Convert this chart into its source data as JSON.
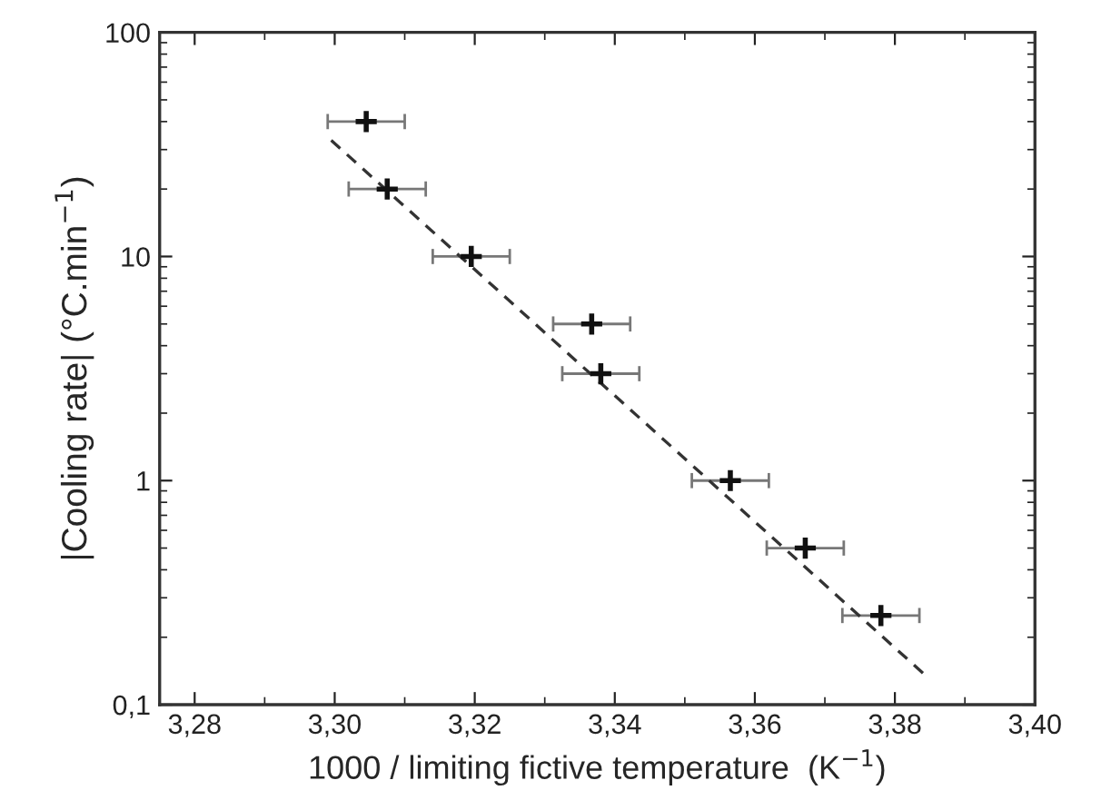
{
  "chart_data": {
    "type": "scatter",
    "xlabel": "1000 / limiting fictive temperature  (K$^{−1}$)",
    "ylabel": "|Cooling rate| (°C.min$^{−1}$)",
    "series": [
      {
        "color": "#111111",
        "marker": "cross",
        "x": [
          3.3045,
          3.3075,
          3.3195,
          3.3367,
          3.338,
          3.3565,
          3.3672,
          3.378
        ],
        "values": [
          40,
          20,
          10,
          5,
          3,
          1,
          0.5,
          0.25
        ],
        "xerrors": [
          0.0055,
          0.0055,
          0.0055,
          0.0055,
          0.0055,
          0.0055,
          0.0055,
          0.0055
        ]
      },
      {
        "type": "line",
        "color": "#333333",
        "line_style": "dashed",
        "marker": "none",
        "x": [
          3.2995,
          3.3845
        ],
        "values": [
          33,
          0.134
        ]
      }
    ],
    "log": "y",
    "xlim": [
      3.275,
      3.4
    ],
    "xticks": [
      {
        "value": 3.28,
        "label": "3,28"
      },
      {
        "value": 3.3,
        "label": "3,30"
      },
      {
        "value": 3.32,
        "label": "3,32"
      },
      {
        "value": 3.34,
        "label": "3,34"
      },
      {
        "value": 3.36,
        "label": "3,36"
      },
      {
        "value": 3.38,
        "label": "3,38"
      },
      {
        "value": 3.4,
        "label": "3,40"
      }
    ],
    "ylim": [
      0.1,
      100
    ],
    "yticks": [
      {
        "value": 0.1,
        "label": "0,1"
      },
      1,
      10,
      100
    ],
    "grid": false,
    "legend": false
  }
}
